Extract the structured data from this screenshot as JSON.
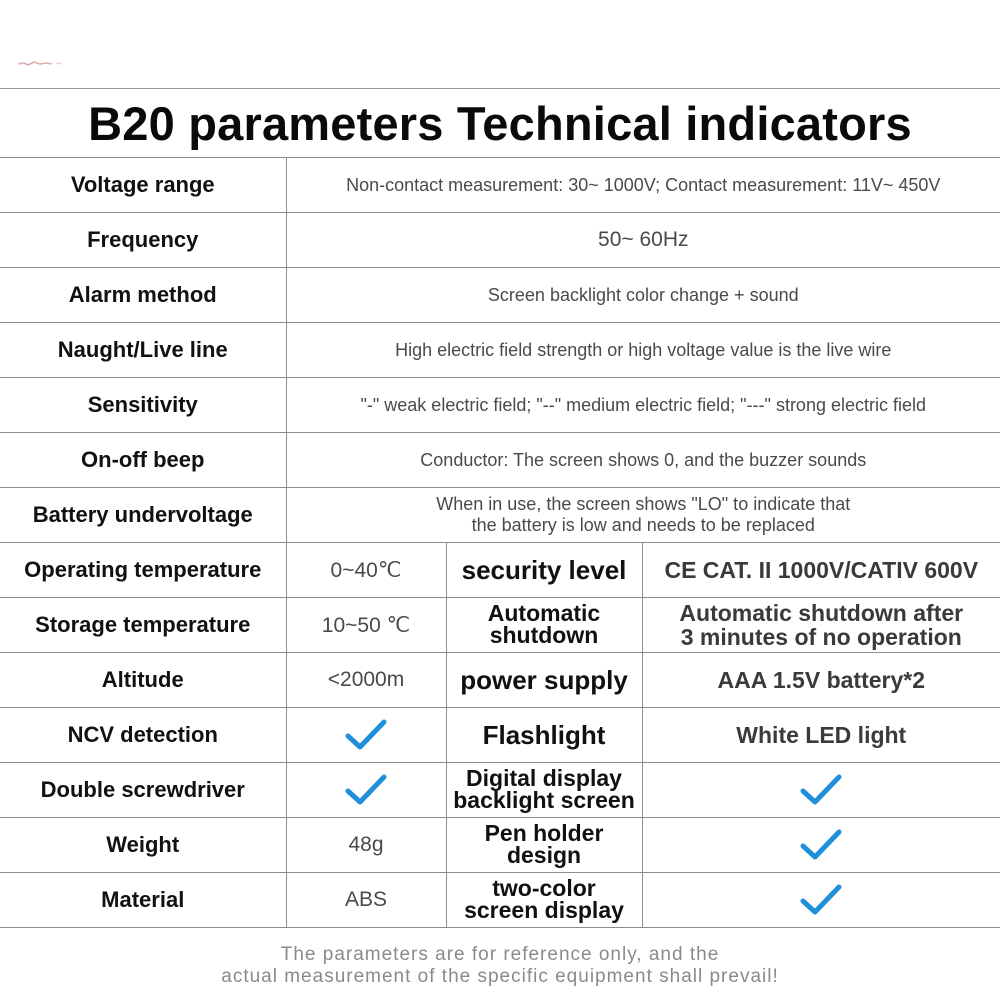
{
  "title": "B20 parameters Technical indicators",
  "colors": {
    "check": "#1e8fd8",
    "border": "#8c8c8c",
    "value_text": "#4a4a4a"
  },
  "rows_full": [
    {
      "label": "Voltage range",
      "value": "Non-contact measurement: 30~ 1000V; Contact measurement: 11V~ 450V"
    },
    {
      "label": "Frequency",
      "value": "50~ 60Hz"
    },
    {
      "label": "Alarm method",
      "value": "Screen backlight color change + sound"
    },
    {
      "label": "Naught/Live line",
      "value": "High electric field strength or high voltage value is the live wire"
    },
    {
      "label": "Sensitivity",
      "value": "\"-\" weak electric field; \"--\" medium electric field; \"---\" strong electric field"
    },
    {
      "label": "On-off beep",
      "value": "Conductor: The screen shows 0, and the buzzer sounds"
    },
    {
      "label": "Battery undervoltage",
      "value": "When in use, the screen shows \"LO\" to indicate that",
      "value_line2": "the battery is low and needs to be replaced"
    }
  ],
  "rows_split": [
    {
      "label": "Operating temperature",
      "value": "0~40℃",
      "label2": "security level",
      "value2": "CE CAT. II 1000V/CATIV 600V"
    },
    {
      "label": "Storage temperature",
      "value": "10~50 ℃",
      "label2": "Automatic",
      "label2_line2": "shutdown",
      "value2": "Automatic shutdown after",
      "value2_line2": "3 minutes of no operation"
    },
    {
      "label": "Altitude",
      "value": "<2000m",
      "label2": "power supply",
      "value2": "AAA 1.5V battery*2"
    },
    {
      "label": "NCV detection",
      "value_icon": "check-icon",
      "label2": "Flashlight",
      "value2": "White LED light"
    },
    {
      "label": "Double screwdriver",
      "value_icon": "check-icon",
      "label2": "Digital display",
      "label2_line2": "backlight screen",
      "value2_icon": "check-icon"
    },
    {
      "label": "Weight",
      "value": "48g",
      "label2": "Pen holder",
      "label2_line2": "design",
      "value2_icon": "check-icon"
    },
    {
      "label": "Material",
      "value": "ABS",
      "label2": "two-color",
      "label2_line2": "screen display",
      "value2_icon": "check-icon"
    }
  ],
  "footnote": {
    "line1": "The parameters are for reference only, and the",
    "line2": "actual measurement of the specific equipment shall prevail!"
  }
}
